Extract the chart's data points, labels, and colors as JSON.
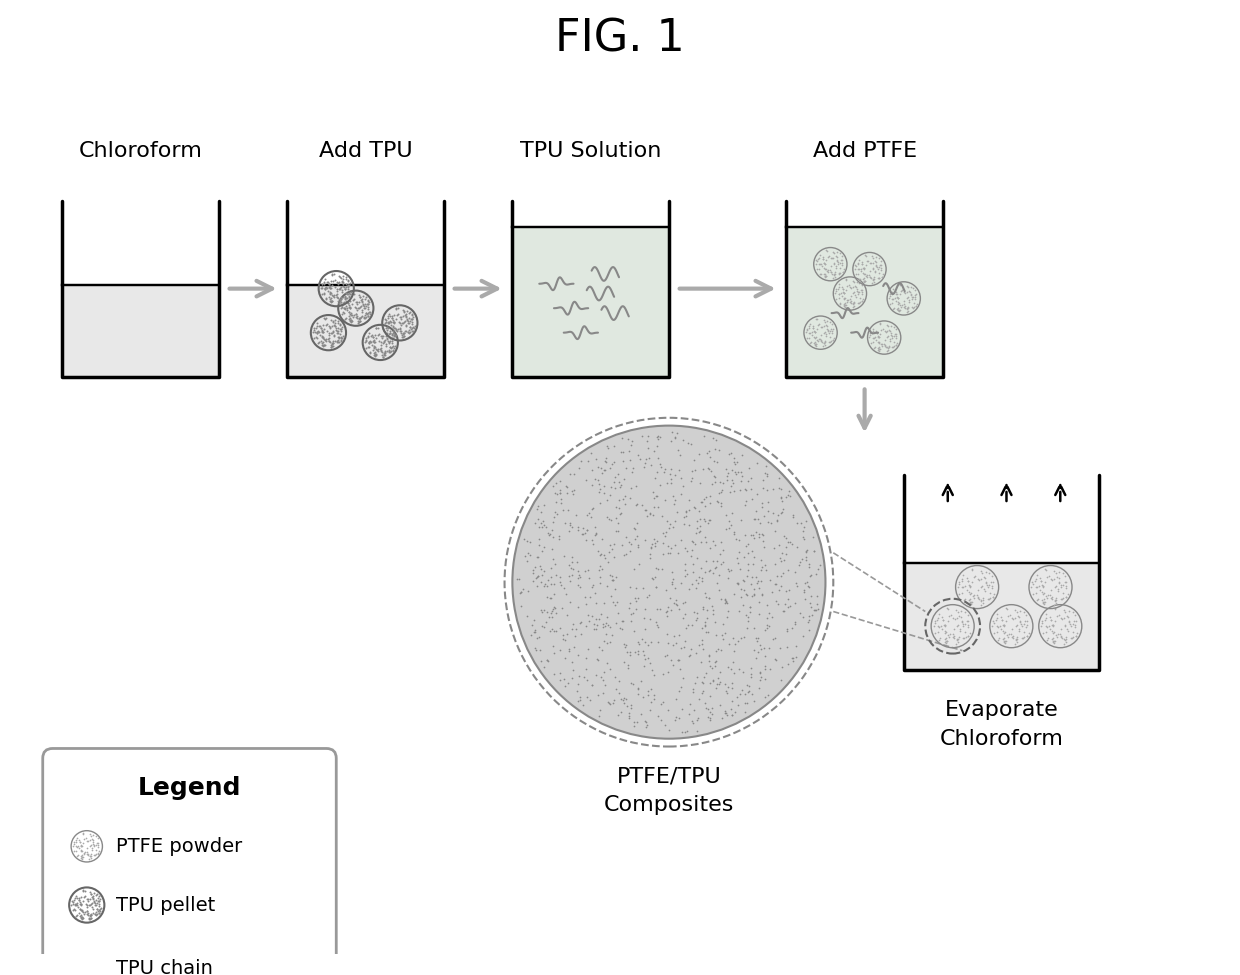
{
  "title": "FIG. 1",
  "title_fontsize": 32,
  "bg_color": "#ffffff",
  "step_labels": [
    "Chloroform",
    "Add TPU",
    "TPU Solution",
    "Add PTFE"
  ],
  "bottom_labels_left": [
    "PTFE/TPU",
    "Composites"
  ],
  "bottom_labels_right": [
    "Evaporate",
    "Chloroform"
  ],
  "legend_title": "Legend",
  "legend_items": [
    "PTFE powder",
    "TPU pellet",
    "TPU chain"
  ],
  "gray_light": "#c8c8c8",
  "gray_dark": "#888888",
  "gray_fill": "#b0b0b0",
  "gray_stipple": "#a0a0a0"
}
